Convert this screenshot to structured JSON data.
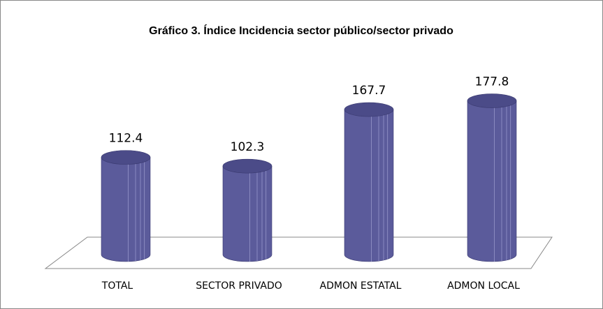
{
  "chart_data": {
    "type": "bar",
    "title": "Gráfico 3. Índice Incidencia sector público/sector privado",
    "categories": [
      "TOTAL",
      "SECTOR PRIVADO",
      "ADMON ESTATAL",
      "ADMON LOCAL"
    ],
    "values": [
      112.4,
      102.3,
      167.7,
      177.8
    ],
    "color": "#5b5b9b",
    "grid": false
  }
}
